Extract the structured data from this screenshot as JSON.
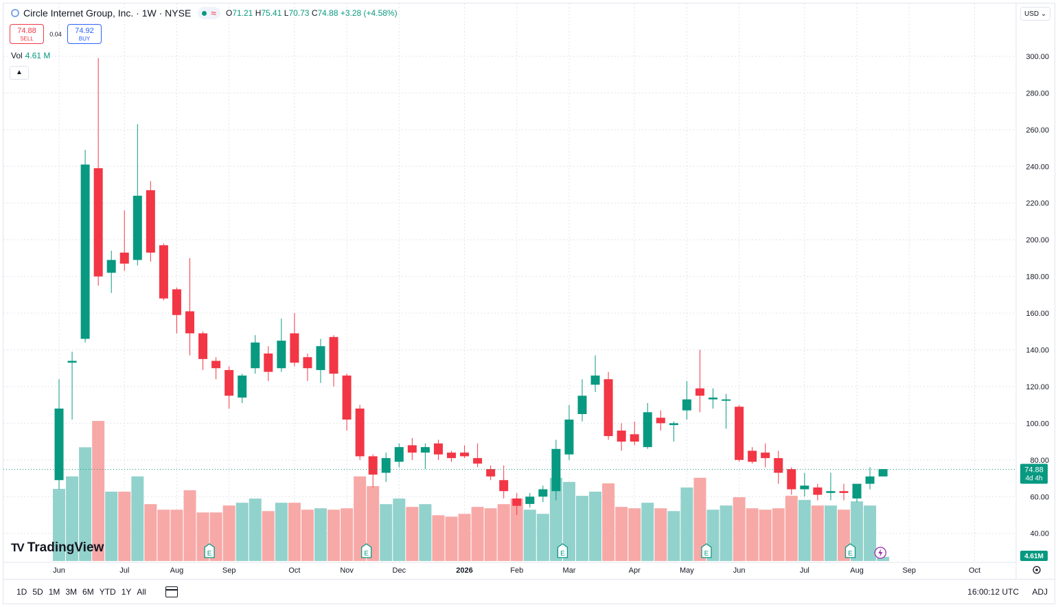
{
  "header": {
    "symbol_title": "Circle Internet Group, Inc. · 1W · NYSE",
    "open_label": "O",
    "open": "71.21",
    "high_label": "H",
    "high": "75.41",
    "low_label": "L",
    "low": "70.73",
    "close_label": "C",
    "close": "74.88",
    "change": "+3.28 (+4.58%)",
    "status_icon": "market-open-dot",
    "delay_icon": "wave-icon"
  },
  "trade": {
    "sell_price": "74.88",
    "sell_label": "SELL",
    "spread": "0.04",
    "buy_price": "74.92",
    "buy_label": "BUY"
  },
  "volume": {
    "label": "Vol",
    "value": "4.61 M",
    "axis_badge": "4.61M"
  },
  "currency": "USD",
  "price_badge": {
    "price": "74.88",
    "countdown": "4d 4h"
  },
  "bottom": {
    "ranges": [
      "1D",
      "5D",
      "1M",
      "3M",
      "6M",
      "YTD",
      "1Y",
      "All"
    ],
    "time": "16:00:12 UTC",
    "adj": "ADJ"
  },
  "brand": "TradingView",
  "colors": {
    "up": "#089981",
    "down": "#f23645",
    "up_vol": "#92d2cc",
    "down_vol": "#f7a9a7",
    "grid": "#e0e3eb"
  },
  "chart_data": {
    "type": "candlestick",
    "ylim": [
      34,
      306
    ],
    "yticks": [
      40,
      60,
      80,
      100,
      120,
      140,
      160,
      180,
      200,
      220,
      240,
      260,
      280,
      300
    ],
    "ytick_labels": [
      "40.00",
      "60.00",
      "80.00",
      "100.00",
      "120.00",
      "140.00",
      "160.00",
      "180.00",
      "200.00",
      "220.00",
      "240.00",
      "260.00",
      "280.00",
      "300.00"
    ],
    "month_labels": [
      "Jun",
      "Jul",
      "Aug",
      "Sep",
      "Oct",
      "Nov",
      "Dec",
      "2026",
      "Feb",
      "Mar",
      "Apr",
      "May",
      "Jun",
      "Jul",
      "Aug",
      "Sep",
      "Oct"
    ],
    "earnings_marker": "E",
    "candles": [
      {
        "o": 69,
        "h": 124,
        "l": 64,
        "c": 108,
        "v": 52
      },
      {
        "o": 133,
        "h": 139,
        "l": 102,
        "c": 134,
        "v": 61
      },
      {
        "o": 146,
        "h": 249,
        "l": 144,
        "c": 241,
        "v": 82
      },
      {
        "o": 239,
        "h": 299,
        "l": 175,
        "c": 180,
        "v": 101
      },
      {
        "o": 182,
        "h": 194,
        "l": 171,
        "c": 189,
        "v": 50
      },
      {
        "o": 193,
        "h": 216,
        "l": 183,
        "c": 187,
        "v": 50
      },
      {
        "o": 189,
        "h": 263,
        "l": 186,
        "c": 224,
        "v": 61
      },
      {
        "o": 227,
        "h": 232,
        "l": 188,
        "c": 193,
        "v": 41
      },
      {
        "o": 197,
        "h": 198,
        "l": 167,
        "c": 168,
        "v": 37
      },
      {
        "o": 173,
        "h": 174,
        "l": 149,
        "c": 159,
        "v": 37
      },
      {
        "o": 161,
        "h": 190,
        "l": 137,
        "c": 149,
        "v": 51
      },
      {
        "o": 149,
        "h": 150,
        "l": 129,
        "c": 135,
        "v": 35
      },
      {
        "o": 134,
        "h": 136,
        "l": 124,
        "c": 130,
        "v": 35
      },
      {
        "o": 129,
        "h": 131,
        "l": 108,
        "c": 115,
        "v": 40
      },
      {
        "o": 114,
        "h": 127,
        "l": 111,
        "c": 126,
        "v": 42
      },
      {
        "o": 130,
        "h": 148,
        "l": 127,
        "c": 144,
        "v": 45
      },
      {
        "o": 138,
        "h": 142,
        "l": 123,
        "c": 128,
        "v": 36
      },
      {
        "o": 130,
        "h": 157,
        "l": 128,
        "c": 145,
        "v": 42
      },
      {
        "o": 149,
        "h": 160,
        "l": 131,
        "c": 133,
        "v": 42
      },
      {
        "o": 136,
        "h": 138,
        "l": 123,
        "c": 130,
        "v": 37
      },
      {
        "o": 129,
        "h": 146,
        "l": 122,
        "c": 142,
        "v": 38
      },
      {
        "o": 147,
        "h": 148,
        "l": 120,
        "c": 127,
        "v": 37
      },
      {
        "o": 126,
        "h": 127,
        "l": 96,
        "c": 102,
        "v": 38
      },
      {
        "o": 108,
        "h": 110,
        "l": 80,
        "c": 82,
        "v": 61
      },
      {
        "o": 82,
        "h": 83,
        "l": 65,
        "c": 72,
        "v": 54
      },
      {
        "o": 73,
        "h": 84,
        "l": 68,
        "c": 81,
        "v": 41
      },
      {
        "o": 79,
        "h": 89,
        "l": 76,
        "c": 87,
        "v": 45
      },
      {
        "o": 88,
        "h": 92,
        "l": 80,
        "c": 84,
        "v": 39
      },
      {
        "o": 84,
        "h": 89,
        "l": 75,
        "c": 87,
        "v": 41
      },
      {
        "o": 89,
        "h": 91,
        "l": 80,
        "c": 83,
        "v": 33
      },
      {
        "o": 84,
        "h": 85,
        "l": 79,
        "c": 81,
        "v": 32
      },
      {
        "o": 84,
        "h": 88,
        "l": 81,
        "c": 82,
        "v": 34
      },
      {
        "o": 81,
        "h": 89,
        "l": 76,
        "c": 78,
        "v": 39
      },
      {
        "o": 75,
        "h": 77,
        "l": 69,
        "c": 71,
        "v": 38
      },
      {
        "o": 69,
        "h": 77,
        "l": 59,
        "c": 63,
        "v": 41
      },
      {
        "o": 59,
        "h": 62,
        "l": 50,
        "c": 55,
        "v": 45
      },
      {
        "o": 56,
        "h": 62,
        "l": 54,
        "c": 60,
        "v": 37
      },
      {
        "o": 60,
        "h": 66,
        "l": 57,
        "c": 64,
        "v": 34
      },
      {
        "o": 63,
        "h": 91,
        "l": 58,
        "c": 86,
        "v": 60
      },
      {
        "o": 83,
        "h": 110,
        "l": 80,
        "c": 102,
        "v": 57
      },
      {
        "o": 105,
        "h": 124,
        "l": 101,
        "c": 115,
        "v": 47
      },
      {
        "o": 121,
        "h": 137,
        "l": 117,
        "c": 126,
        "v": 50
      },
      {
        "o": 124,
        "h": 128,
        "l": 91,
        "c": 93,
        "v": 56
      },
      {
        "o": 96,
        "h": 100,
        "l": 85,
        "c": 90,
        "v": 39
      },
      {
        "o": 94,
        "h": 101,
        "l": 88,
        "c": 90,
        "v": 38
      },
      {
        "o": 87,
        "h": 111,
        "l": 86,
        "c": 106,
        "v": 42
      },
      {
        "o": 103,
        "h": 107,
        "l": 96,
        "c": 100,
        "v": 38
      },
      {
        "o": 99,
        "h": 101,
        "l": 90,
        "c": 100,
        "v": 36
      },
      {
        "o": 107,
        "h": 123,
        "l": 102,
        "c": 113,
        "v": 53
      },
      {
        "o": 119,
        "h": 140,
        "l": 106,
        "c": 115,
        "v": 60
      },
      {
        "o": 113,
        "h": 119,
        "l": 108,
        "c": 114,
        "v": 37
      },
      {
        "o": 113,
        "h": 116,
        "l": 97,
        "c": 113,
        "v": 40
      },
      {
        "o": 109,
        "h": 110,
        "l": 79,
        "c": 80,
        "v": 46
      },
      {
        "o": 85,
        "h": 87,
        "l": 78,
        "c": 79,
        "v": 38
      },
      {
        "o": 84,
        "h": 89,
        "l": 76,
        "c": 81,
        "v": 37
      },
      {
        "o": 81,
        "h": 85,
        "l": 67,
        "c": 73,
        "v": 38
      },
      {
        "o": 75,
        "h": 76,
        "l": 61,
        "c": 64,
        "v": 47
      },
      {
        "o": 64,
        "h": 73,
        "l": 60,
        "c": 66,
        "v": 44
      },
      {
        "o": 65,
        "h": 67,
        "l": 58,
        "c": 61,
        "v": 40
      },
      {
        "o": 62,
        "h": 73,
        "l": 58,
        "c": 63,
        "v": 40
      },
      {
        "o": 63,
        "h": 67,
        "l": 58,
        "c": 62,
        "v": 37
      },
      {
        "o": 59,
        "h": 67,
        "l": 57,
        "c": 67,
        "v": 43
      },
      {
        "o": 67,
        "h": 76,
        "l": 64,
        "c": 71,
        "v": 40
      },
      {
        "o": 71,
        "h": 75,
        "l": 71,
        "c": 75,
        "v": 3
      }
    ],
    "earnings_after_candle": [
      11,
      23,
      38,
      49,
      60
    ],
    "flash_after_candle": 62
  }
}
